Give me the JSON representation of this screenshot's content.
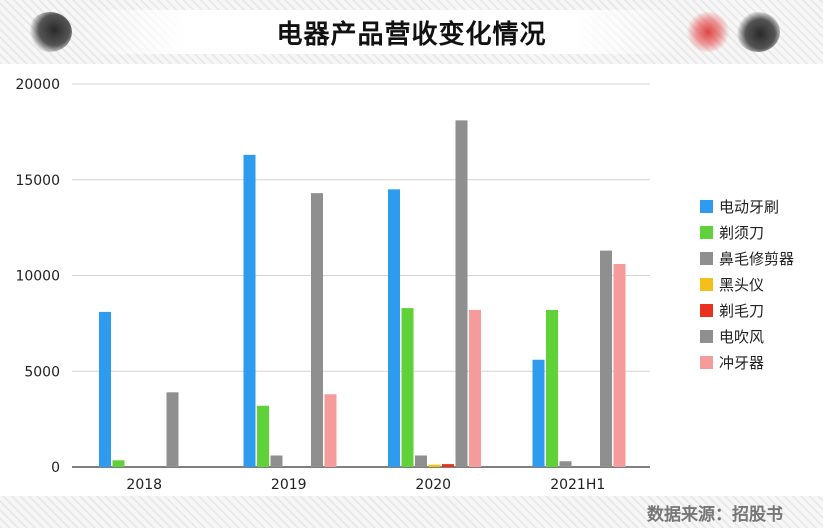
{
  "title": "电器产品营收变化情况",
  "source": "数据来源：招股书",
  "colors": {
    "电动牙刷": "#2e9bef",
    "剃须刀": "#5fd23a",
    "鼻毛修剪器": "#8f8f8f",
    "黑头仪": "#f5bf1a",
    "剃毛刀": "#e8311e",
    "电吹风": "#8f8f8f",
    "冲牙器": "#f59b9b"
  },
  "chart_data": {
    "type": "bar",
    "title": "电器产品营收变化情况",
    "xlabel": "",
    "ylabel": "",
    "ylim": [
      0,
      20000
    ],
    "yticks": [
      0,
      5000,
      10000,
      15000,
      20000
    ],
    "grid": true,
    "legend": "right",
    "categories": [
      "2018",
      "2019",
      "2020",
      "2021H1"
    ],
    "series": [
      {
        "name": "电动牙刷",
        "values": [
          8100,
          16300,
          14500,
          5600
        ]
      },
      {
        "name": "剃须刀",
        "values": [
          350,
          3200,
          8300,
          8200
        ]
      },
      {
        "name": "鼻毛修剪器",
        "values": [
          0,
          600,
          600,
          300
        ]
      },
      {
        "name": "黑头仪",
        "values": [
          0,
          0,
          120,
          0
        ]
      },
      {
        "name": "剃毛刀",
        "values": [
          0,
          0,
          150,
          0
        ]
      },
      {
        "name": "电吹风",
        "values": [
          3900,
          14300,
          18100,
          11300
        ]
      },
      {
        "name": "冲牙器",
        "values": [
          0,
          3800,
          8200,
          10600
        ]
      }
    ]
  }
}
